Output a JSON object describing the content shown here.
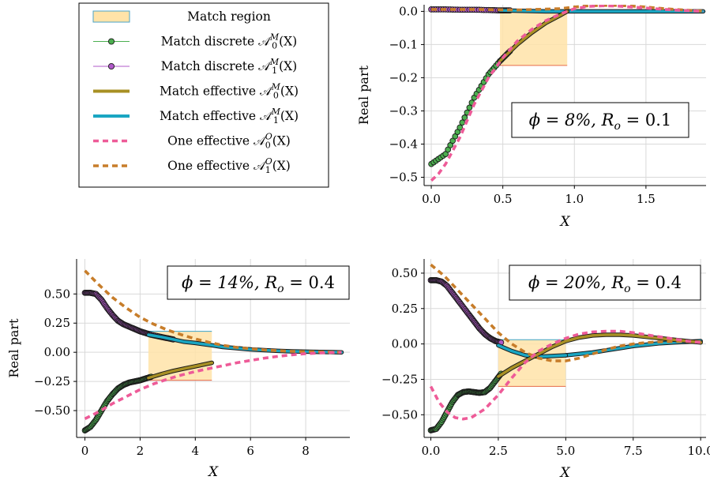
{
  "legend": {
    "items": [
      {
        "key": "match_region",
        "label": "Match region",
        "color": "#ffe6b3",
        "edge": "#4aa3c7"
      },
      {
        "key": "disc0",
        "label": "Match discrete 𝒜",
        "sym": "0",
        "sup": "M",
        "tail": "(X)",
        "color": "#4caf50"
      },
      {
        "key": "disc1",
        "label": "Match discrete 𝒜",
        "sym": "1",
        "sup": "M",
        "tail": "(X)",
        "color": "#b058c8"
      },
      {
        "key": "eff0",
        "label": "Match effective 𝒜",
        "sym": "0",
        "sup": "M",
        "tail": "(X)",
        "color": "#a89024"
      },
      {
        "key": "eff1",
        "label": "Match effective 𝒜",
        "sym": "1",
        "sup": "M",
        "tail": "(X)",
        "color": "#1aa6c2"
      },
      {
        "key": "one0",
        "label": "One effective 𝒜",
        "sym": "0",
        "sup": "O",
        "tail": "(X)",
        "color": "#ee5b98"
      },
      {
        "key": "one1",
        "label": "One effective 𝒜",
        "sym": "1",
        "sup": "O",
        "tail": "(X)",
        "color": "#c77d2a"
      }
    ]
  },
  "chart_data": [
    {
      "type": "line",
      "annotation": "ϕ = 8%, R",
      "annotation_sub": "o",
      "annotation_tail": " = 0.1",
      "xlabel": "X",
      "ylabel": "Real part",
      "xlim": [
        -0.05,
        1.92
      ],
      "ylim": [
        -0.525,
        0.02
      ],
      "xticks": [
        0,
        0.5,
        1,
        1.5
      ],
      "xticklabels": [
        "0.0",
        "0.5",
        "1.0",
        "1.5"
      ],
      "yticks": [
        0,
        -0.1,
        -0.2,
        -0.3,
        -0.4,
        -0.5
      ],
      "yticklabels": [
        "0.0",
        "−0.1",
        "−0.2",
        "−0.3",
        "−0.4",
        "−0.5"
      ],
      "match_region": {
        "x": [
          0.48,
          0.95
        ],
        "y": [
          -0.163,
          0.0
        ]
      },
      "series": {
        "disc0": {
          "x": [
            0,
            0.1,
            0.2,
            0.3,
            0.4,
            0.48,
            0.55
          ],
          "y": [
            -0.46,
            -0.43,
            -0.35,
            -0.26,
            -0.19,
            -0.15,
            -0.12
          ]
        },
        "disc1": {
          "x": [
            0,
            0.1,
            0.2,
            0.3,
            0.4,
            0.48,
            0.55
          ],
          "y": [
            0.006,
            0.006,
            0.005,
            0.005,
            0.004,
            0.003,
            0.003
          ]
        },
        "eff0": {
          "x": [
            0.48,
            0.6,
            0.7,
            0.8,
            0.9,
            0.95
          ],
          "y": [
            -0.15,
            -0.1,
            -0.065,
            -0.035,
            -0.012,
            0.0
          ]
        },
        "eff1": {
          "x": [
            0.48,
            0.6,
            0.7,
            0.8,
            0.95,
            1.2,
            1.5,
            1.9
          ],
          "y": [
            0.003,
            0.002,
            0.001,
            0.0,
            0.0,
            0.0,
            0.0,
            0.0
          ]
        },
        "one0": {
          "x": [
            0,
            0.05,
            0.1,
            0.2,
            0.3,
            0.4,
            0.5,
            0.6,
            0.7,
            0.8,
            0.9,
            1.0,
            1.1,
            1.2,
            1.3,
            1.4,
            1.5,
            1.6,
            1.7,
            1.8,
            1.9
          ],
          "y": [
            -0.51,
            -0.49,
            -0.46,
            -0.38,
            -0.28,
            -0.2,
            -0.14,
            -0.09,
            -0.055,
            -0.028,
            -0.008,
            0.008,
            0.015,
            0.017,
            0.016,
            0.013,
            0.01,
            0.007,
            0.004,
            0.002,
            0.0
          ]
        },
        "one1": {
          "x": [
            0,
            0.3,
            0.6,
            0.9,
            1.0,
            1.1,
            1.2,
            1.3,
            1.4,
            1.5,
            1.6,
            1.7,
            1.8,
            1.9
          ],
          "y": [
            0.006,
            0.006,
            0.004,
            0.008,
            0.013,
            0.017,
            0.018,
            0.018,
            0.016,
            0.013,
            0.009,
            0.006,
            0.003,
            0.001
          ]
        }
      }
    },
    {
      "type": "line",
      "annotation": "ϕ = 14%, R",
      "annotation_sub": "o",
      "annotation_tail": " = 0.4",
      "xlabel": "X",
      "ylabel": "Real part",
      "xlim": [
        -0.3,
        9.6
      ],
      "ylim": [
        -0.73,
        0.8
      ],
      "xticks": [
        0,
        2,
        4,
        6,
        8
      ],
      "xticklabels": [
        "0",
        "2",
        "4",
        "6",
        "8"
      ],
      "yticks": [
        0.5,
        0.25,
        0,
        -0.25,
        -0.5
      ],
      "yticklabels": [
        "0.50",
        "0.25",
        "0.00",
        "−0.25",
        "−0.50"
      ],
      "match_region": {
        "x": [
          2.3,
          4.6
        ],
        "y": [
          -0.24,
          0.18
        ]
      },
      "series": {
        "disc0": {
          "x": [
            0,
            0.2,
            0.4,
            0.6,
            0.8,
            1.0,
            1.2,
            1.4,
            1.6,
            1.8,
            2.0,
            2.2,
            2.4
          ],
          "y": [
            -0.67,
            -0.64,
            -0.58,
            -0.5,
            -0.42,
            -0.36,
            -0.31,
            -0.28,
            -0.26,
            -0.25,
            -0.24,
            -0.225,
            -0.21
          ]
        },
        "disc1": {
          "x": [
            0,
            0.2,
            0.4,
            0.6,
            0.8,
            1.0,
            1.2,
            1.4,
            1.6,
            1.8,
            2.0,
            2.2,
            2.4,
            2.8,
            3.2
          ],
          "y": [
            0.51,
            0.51,
            0.5,
            0.45,
            0.38,
            0.32,
            0.27,
            0.24,
            0.22,
            0.2,
            0.18,
            0.165,
            0.15,
            0.13,
            0.11
          ]
        },
        "eff0": {
          "x": [
            2.3,
            2.8,
            3.2,
            3.6,
            4.0,
            4.3,
            4.6
          ],
          "y": [
            -0.22,
            -0.185,
            -0.16,
            -0.14,
            -0.12,
            -0.105,
            -0.09
          ]
        },
        "eff1": {
          "x": [
            2.3,
            2.8,
            3.2,
            3.6,
            4.0,
            4.6,
            5.0,
            5.5,
            6.0,
            6.5,
            7.0,
            7.5,
            8.0,
            8.5,
            9.0,
            9.3
          ],
          "y": [
            0.15,
            0.13,
            0.11,
            0.09,
            0.08,
            0.06,
            0.045,
            0.035,
            0.025,
            0.018,
            0.012,
            0.008,
            0.005,
            0.003,
            0.001,
            0.0
          ]
        },
        "one0": {
          "x": [
            0,
            0.5,
            1.0,
            1.5,
            2.0,
            2.5,
            3.0,
            3.5,
            4.0,
            4.5,
            5.0,
            5.5,
            6.0,
            6.5,
            7.0,
            7.5,
            8.0,
            8.5,
            9.0,
            9.3
          ],
          "y": [
            -0.57,
            -0.51,
            -0.44,
            -0.38,
            -0.32,
            -0.27,
            -0.23,
            -0.195,
            -0.165,
            -0.14,
            -0.115,
            -0.09,
            -0.07,
            -0.05,
            -0.035,
            -0.022,
            -0.012,
            -0.006,
            -0.002,
            0.0
          ]
        },
        "one1": {
          "x": [
            0,
            0.5,
            1.0,
            1.5,
            2.0,
            2.5,
            3.0,
            3.5,
            4.0,
            4.5,
            5.0,
            5.5,
            6.0,
            6.5,
            7.0,
            7.5,
            8.0,
            8.5,
            9.0,
            9.3
          ],
          "y": [
            0.7,
            0.58,
            0.47,
            0.38,
            0.3,
            0.24,
            0.19,
            0.15,
            0.115,
            0.085,
            0.06,
            0.042,
            0.03,
            0.02,
            0.013,
            0.008,
            0.005,
            0.003,
            0.001,
            0.0
          ]
        }
      }
    },
    {
      "type": "line",
      "annotation": "ϕ = 20%, R",
      "annotation_sub": "o",
      "annotation_tail": " = 0.4",
      "xlabel": "X",
      "ylabel": "",
      "xlim": [
        -0.25,
        10.2
      ],
      "ylim": [
        -0.66,
        0.6
      ],
      "xticks": [
        0,
        2.5,
        5,
        7.5,
        10
      ],
      "xticklabels": [
        "0.0",
        "2.5",
        "5.0",
        "7.5",
        "10.0"
      ],
      "yticks": [
        0.5,
        0.25,
        0,
        -0.25,
        -0.5
      ],
      "yticklabels": [
        "0.50",
        "0.25",
        "0.00",
        "−0.25",
        "−0.50"
      ],
      "match_region": {
        "x": [
          2.5,
          5.0
        ],
        "y": [
          -0.3,
          0.03
        ]
      },
      "series": {
        "disc0": {
          "x": [
            0,
            0.2,
            0.4,
            0.6,
            0.8,
            1.0,
            1.2,
            1.4,
            1.6,
            1.8,
            2.0,
            2.2,
            2.4,
            2.6
          ],
          "y": [
            -0.61,
            -0.6,
            -0.55,
            -0.48,
            -0.41,
            -0.36,
            -0.34,
            -0.335,
            -0.34,
            -0.345,
            -0.34,
            -0.31,
            -0.26,
            -0.21
          ]
        },
        "disc1": {
          "x": [
            0,
            0.2,
            0.4,
            0.6,
            0.8,
            1.0,
            1.2,
            1.4,
            1.6,
            1.8,
            2.0,
            2.2,
            2.4,
            2.6
          ],
          "y": [
            0.45,
            0.45,
            0.44,
            0.41,
            0.36,
            0.31,
            0.26,
            0.21,
            0.16,
            0.11,
            0.07,
            0.04,
            0.02,
            0.01
          ]
        },
        "eff0": {
          "x": [
            2.5,
            3.0,
            3.5,
            4.0,
            4.5,
            5.0,
            5.5,
            6.0,
            6.5,
            7.0,
            7.5,
            8.0,
            8.5,
            9.0,
            9.5,
            10.0
          ],
          "y": [
            -0.23,
            -0.17,
            -0.12,
            -0.07,
            -0.02,
            0.02,
            0.045,
            0.06,
            0.065,
            0.065,
            0.06,
            0.05,
            0.04,
            0.03,
            0.02,
            0.01
          ]
        },
        "eff1": {
          "x": [
            2.5,
            3.0,
            3.5,
            4.0,
            4.5,
            5.0
          ],
          "y": [
            -0.01,
            -0.05,
            -0.08,
            -0.09,
            -0.085,
            -0.08
          ]
        },
        "eff1_tail": {
          "x": [
            5.0,
            5.5,
            6.0,
            6.5,
            7.0,
            7.5,
            8.0,
            8.5,
            9.0,
            9.5,
            10.0
          ],
          "y": [
            -0.08,
            -0.07,
            -0.06,
            -0.045,
            -0.03,
            -0.015,
            -0.005,
            0.005,
            0.01,
            0.015,
            0.02
          ]
        },
        "one0": {
          "x": [
            0,
            0.3,
            0.6,
            0.9,
            1.2,
            1.5,
            2.0,
            2.5,
            3.0,
            3.5,
            4.0,
            4.5,
            5.0,
            5.5,
            6.0,
            6.5,
            7.0,
            7.5,
            8.0,
            8.5,
            9.0,
            9.5,
            10.0
          ],
          "y": [
            -0.3,
            -0.41,
            -0.48,
            -0.52,
            -0.53,
            -0.52,
            -0.46,
            -0.36,
            -0.24,
            -0.13,
            -0.05,
            0.0,
            0.04,
            0.07,
            0.085,
            0.09,
            0.09,
            0.08,
            0.065,
            0.05,
            0.035,
            0.02,
            0.01
          ]
        },
        "one1": {
          "x": [
            0,
            0.5,
            1.0,
            1.5,
            2.0,
            2.5,
            3.0,
            3.5,
            4.0,
            4.5,
            5.0,
            5.5,
            6.0,
            6.5,
            7.0,
            7.5,
            8.0,
            8.5,
            9.0,
            9.5,
            10.0
          ],
          "y": [
            0.56,
            0.48,
            0.38,
            0.28,
            0.18,
            0.08,
            0.0,
            -0.06,
            -0.1,
            -0.12,
            -0.12,
            -0.1,
            -0.07,
            -0.04,
            -0.015,
            0.0,
            0.01,
            0.015,
            0.018,
            0.018,
            0.015
          ]
        }
      }
    }
  ]
}
